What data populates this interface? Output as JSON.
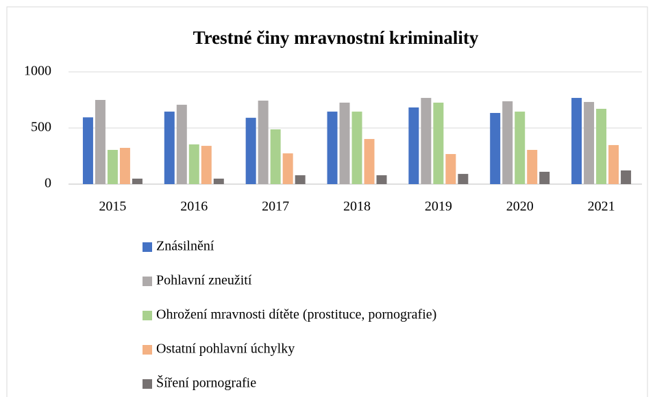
{
  "chart_data": {
    "type": "bar",
    "title": "Trestné činy mravnostní kriminality",
    "categories": [
      "2015",
      "2016",
      "2017",
      "2018",
      "2019",
      "2020",
      "2021"
    ],
    "series": [
      {
        "name": "Znásilnění",
        "color": "#4472c4",
        "values": [
          595,
          646,
          591,
          646,
          683,
          634,
          768
        ]
      },
      {
        "name": "Pohlavní zneužití",
        "color": "#aeaaaa",
        "values": [
          750,
          707,
          744,
          726,
          768,
          738,
          732
        ]
      },
      {
        "name": "Ohrožení mravnosti dítěte (prostituce, pornografie)",
        "color": "#a9d18e",
        "values": [
          305,
          354,
          488,
          646,
          726,
          646,
          671
        ]
      },
      {
        "name": "Ostatní pohlavní úchylky",
        "color": "#f4b183",
        "values": [
          323,
          341,
          274,
          402,
          268,
          305,
          348
        ]
      },
      {
        "name": "Šíření pornografie",
        "color": "#767171",
        "values": [
          49,
          49,
          79,
          79,
          91,
          110,
          122
        ]
      }
    ],
    "ylim": [
      0,
      1000
    ],
    "yticks": [
      0,
      500,
      1000
    ],
    "grid": true,
    "legend": "bottom"
  }
}
